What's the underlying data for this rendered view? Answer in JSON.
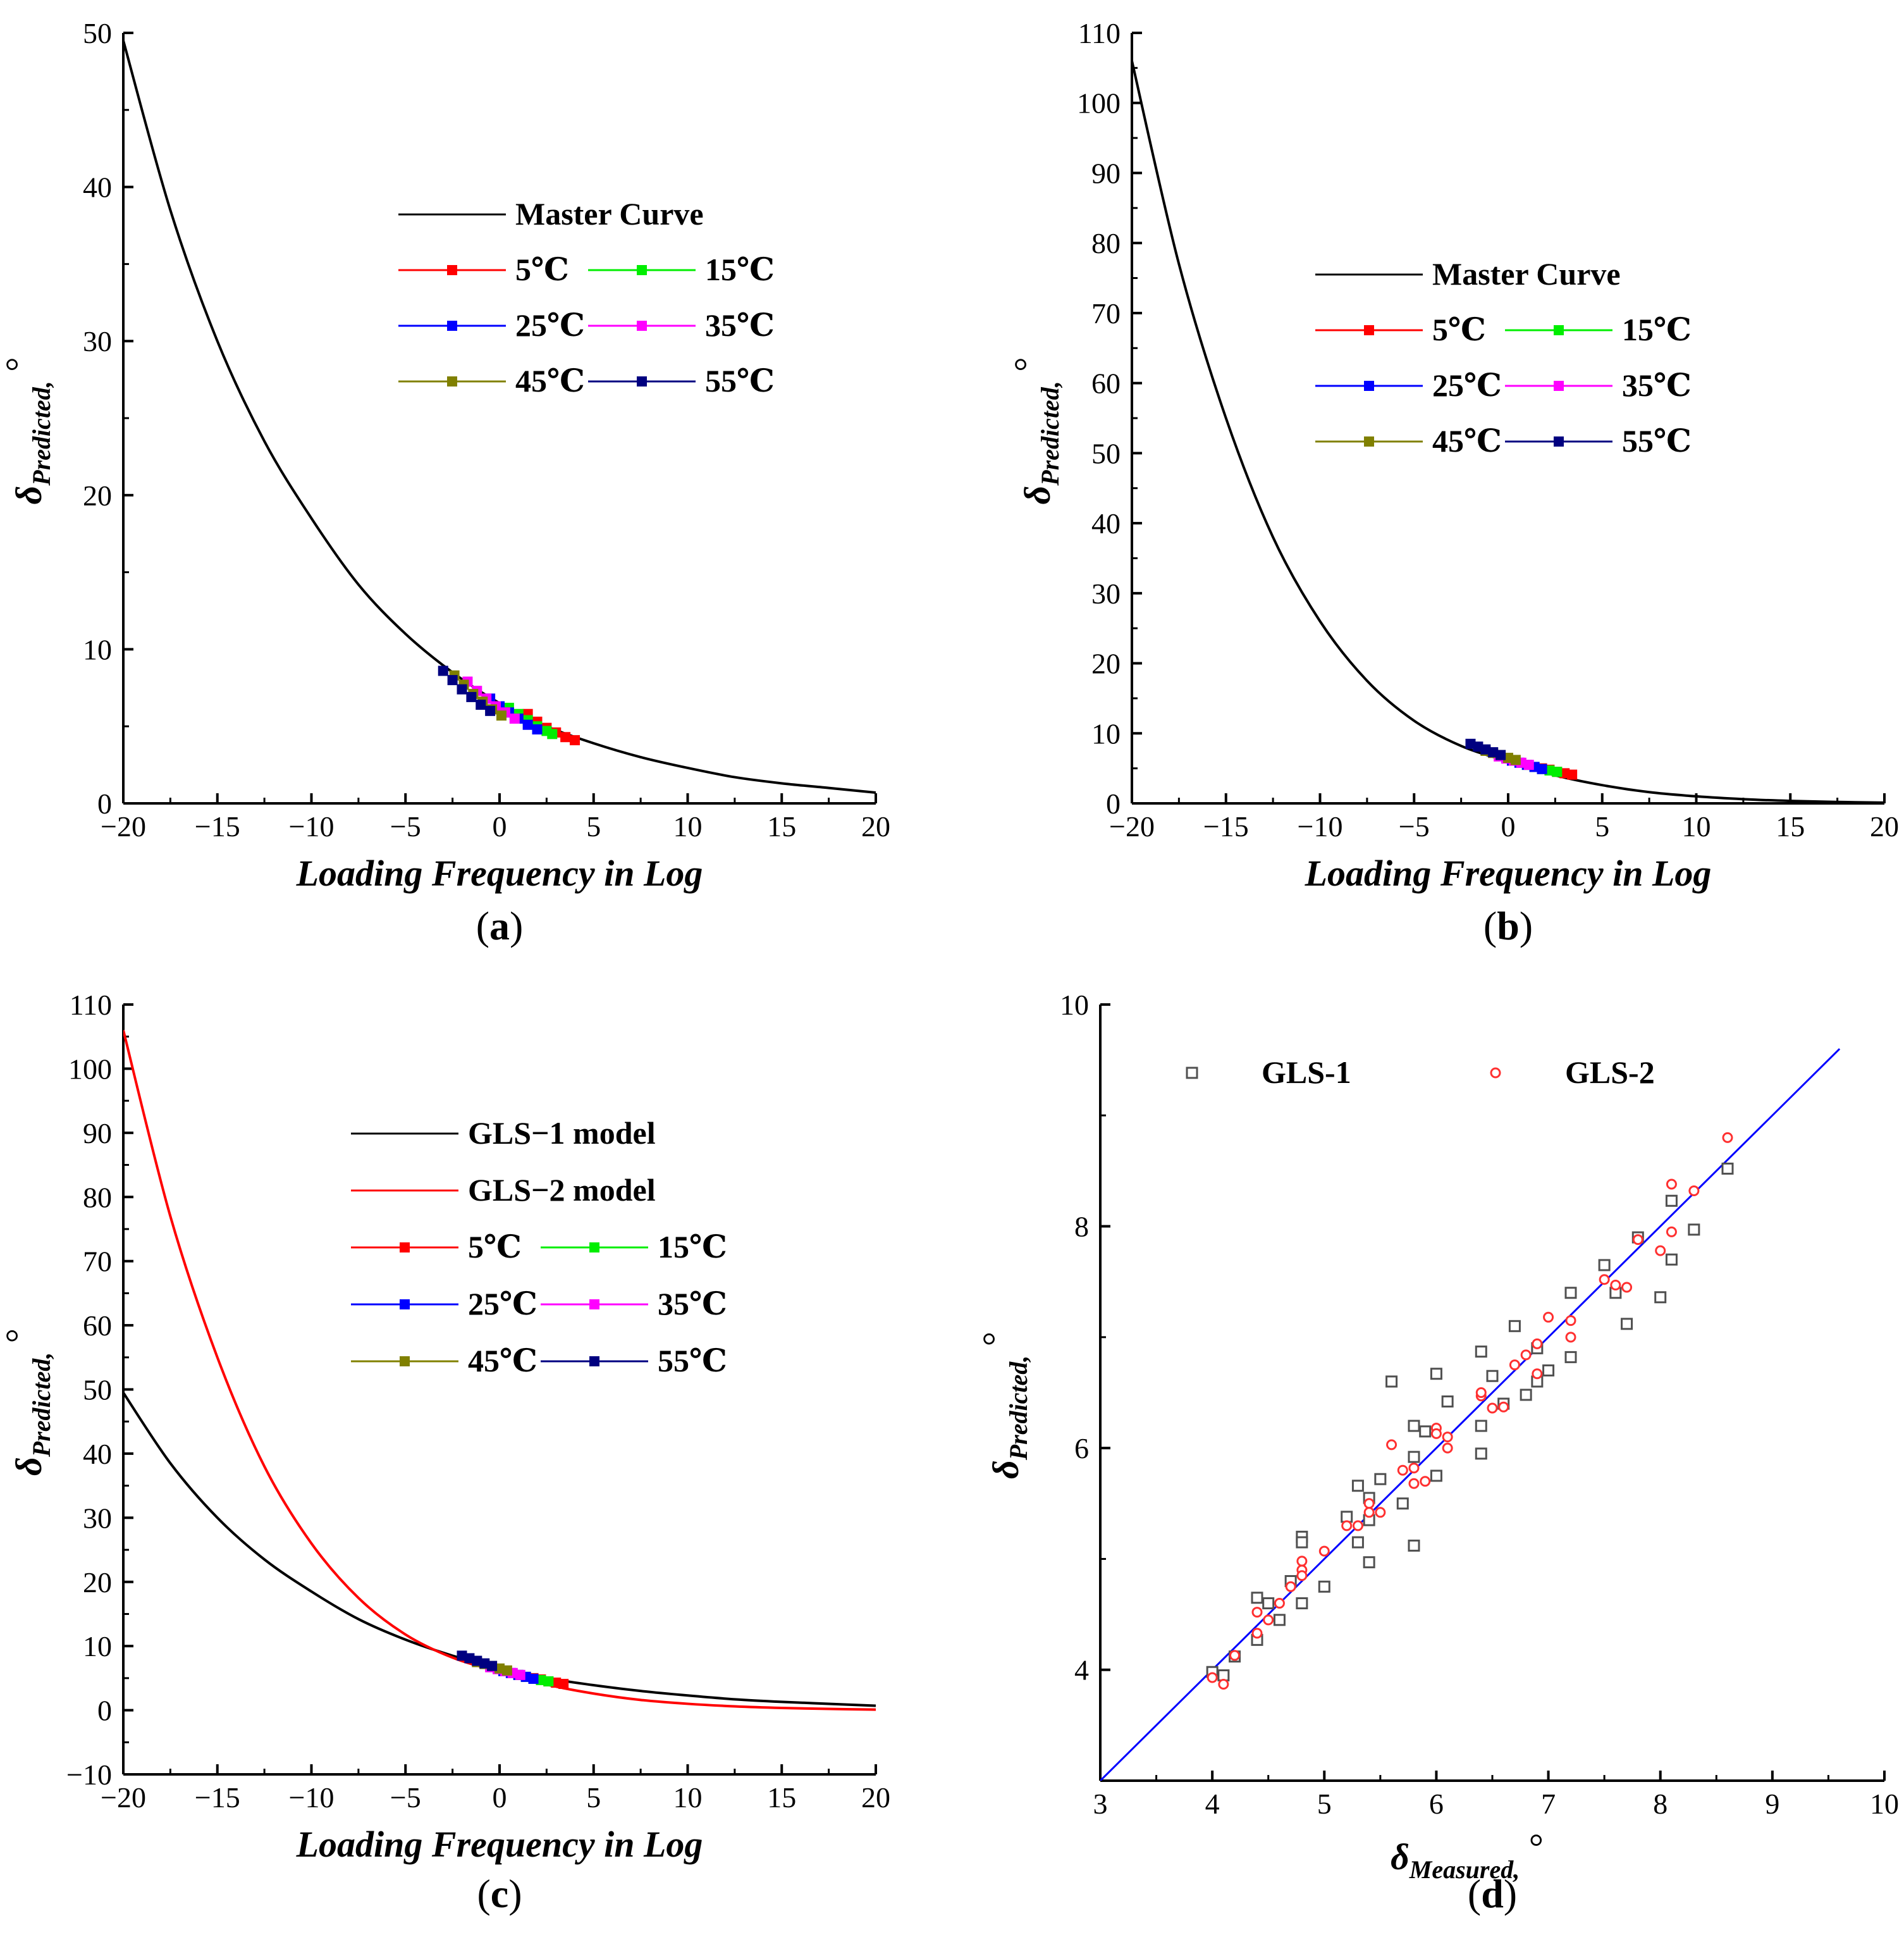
{
  "chart_data": [
    {
      "panel": "(a)",
      "panel_letter": "a",
      "type": "line",
      "xlabel": "Loading Frequency in Log",
      "ylabel_symbol": "δ",
      "ylabel_sub": "Predicted",
      "ylabel_unit": "°",
      "xlim": [
        -20,
        20
      ],
      "ylim": [
        0,
        50
      ],
      "xticks": [
        -20,
        -15,
        -10,
        -5,
        0,
        5,
        10,
        15,
        20
      ],
      "yticks": [
        0,
        10,
        20,
        30,
        40,
        50
      ],
      "curves": [
        {
          "name": "Master Curve",
          "color": "#000000",
          "x": [
            -20,
            -17.5,
            -15,
            -12.5,
            -10,
            -7.5,
            -5,
            -2.5,
            0,
            2.5,
            5,
            7.5,
            10,
            12.5,
            15,
            17.5,
            20
          ],
          "y": [
            49.5,
            38.5,
            30,
            23.5,
            18.5,
            14.2,
            11,
            8.5,
            6.5,
            5,
            3.9,
            3,
            2.3,
            1.7,
            1.3,
            1.0,
            0.7
          ]
        }
      ],
      "legend": [
        "Master Curve",
        "5℃",
        "15℃",
        "25℃",
        "35℃",
        "45℃",
        "55℃"
      ],
      "series": [
        {
          "name": "5℃",
          "color": "#ff0000",
          "x": [
            1.5,
            2.0,
            2.5,
            3.0,
            3.5,
            4.0
          ],
          "y": [
            5.8,
            5.3,
            4.9,
            4.6,
            4.3,
            4.1
          ]
        },
        {
          "name": "15℃",
          "color": "#00ee00",
          "x": [
            0.5,
            1.0,
            1.5,
            2.0,
            2.5,
            2.8
          ],
          "y": [
            6.2,
            5.8,
            5.4,
            5.0,
            4.7,
            4.5
          ]
        },
        {
          "name": "25℃",
          "color": "#0000ff",
          "x": [
            -0.5,
            0.0,
            0.5,
            1.0,
            1.5,
            2.0
          ],
          "y": [
            6.8,
            6.3,
            5.9,
            5.5,
            5.1,
            4.8
          ]
        },
        {
          "name": "35℃",
          "color": "#ff00ff",
          "x": [
            -1.7,
            -1.2,
            -0.7,
            -0.2,
            0.3,
            0.8
          ],
          "y": [
            7.9,
            7.3,
            6.8,
            6.3,
            5.9,
            5.5
          ]
        },
        {
          "name": "45℃",
          "color": "#808000",
          "x": [
            -2.4,
            -1.9,
            -1.4,
            -0.9,
            -0.4,
            0.1
          ],
          "y": [
            8.3,
            7.7,
            7.1,
            6.6,
            6.1,
            5.7
          ]
        },
        {
          "name": "55℃",
          "color": "#000080",
          "x": [
            -3.0,
            -2.5,
            -2.0,
            -1.5,
            -1.0,
            -0.5
          ],
          "y": [
            8.6,
            8.0,
            7.4,
            6.9,
            6.4,
            6.0
          ]
        }
      ]
    },
    {
      "panel": "(b)",
      "panel_letter": "b",
      "type": "line",
      "xlabel": "Loading Frequency in Log",
      "ylabel_symbol": "δ",
      "ylabel_sub": "Predicted",
      "ylabel_unit": "°",
      "xlim": [
        -20,
        20
      ],
      "ylim": [
        0,
        110
      ],
      "xticks": [
        -20,
        -15,
        -10,
        -5,
        0,
        5,
        10,
        15,
        20
      ],
      "yticks": [
        0,
        10,
        20,
        30,
        40,
        50,
        60,
        70,
        80,
        90,
        100,
        110
      ],
      "curves": [
        {
          "name": "Master Curve",
          "color": "#000000",
          "x": [
            -20,
            -17.5,
            -15,
            -12.5,
            -10,
            -7.5,
            -5,
            -2.5,
            0,
            2.5,
            5,
            7.5,
            10,
            12.5,
            15,
            17.5,
            20
          ],
          "y": [
            106,
            77,
            55,
            38,
            26,
            17.5,
            11.8,
            8.2,
            6.0,
            4.0,
            2.6,
            1.6,
            1.0,
            0.6,
            0.35,
            0.2,
            0.1
          ]
        }
      ],
      "legend": [
        "Master Curve",
        "5℃",
        "15℃",
        "25℃",
        "35℃",
        "45℃",
        "55℃"
      ],
      "series": [
        {
          "name": "5℃",
          "color": "#ff0000",
          "x": [
            1.8,
            2.2,
            2.6,
            3.0,
            3.4
          ],
          "y": [
            5.0,
            4.8,
            4.5,
            4.3,
            4.1
          ]
        },
        {
          "name": "15℃",
          "color": "#00ee00",
          "x": [
            1.0,
            1.4,
            1.8,
            2.2,
            2.6
          ],
          "y": [
            5.5,
            5.2,
            4.9,
            4.7,
            4.5
          ]
        },
        {
          "name": "25℃",
          "color": "#0000ff",
          "x": [
            0.2,
            0.6,
            1.0,
            1.4,
            1.8
          ],
          "y": [
            6.1,
            5.8,
            5.5,
            5.2,
            4.9
          ]
        },
        {
          "name": "35℃",
          "color": "#ff00ff",
          "x": [
            -0.5,
            -0.1,
            0.3,
            0.7,
            1.1
          ],
          "y": [
            6.7,
            6.4,
            6.1,
            5.8,
            5.5
          ]
        },
        {
          "name": "45℃",
          "color": "#808000",
          "x": [
            -1.2,
            -0.8,
            -0.4,
            0.0,
            0.4
          ],
          "y": [
            7.5,
            7.2,
            6.9,
            6.5,
            6.2
          ]
        },
        {
          "name": "55℃",
          "color": "#000080",
          "x": [
            -2.0,
            -1.6,
            -1.2,
            -0.8,
            -0.4
          ],
          "y": [
            8.5,
            8.1,
            7.7,
            7.3,
            6.9
          ]
        }
      ]
    },
    {
      "panel": "(c)",
      "panel_letter": "c",
      "type": "line",
      "xlabel": "Loading Frequency in Log",
      "ylabel_symbol": "δ",
      "ylabel_sub": "Predicted",
      "ylabel_unit": "°",
      "xlim": [
        -20,
        20
      ],
      "ylim": [
        -10,
        110
      ],
      "xticks": [
        -20,
        -15,
        -10,
        -5,
        0,
        5,
        10,
        15,
        20
      ],
      "yticks": [
        -10,
        0,
        10,
        20,
        30,
        40,
        50,
        60,
        70,
        80,
        90,
        100,
        110
      ],
      "curves": [
        {
          "name": "GLS−1 model",
          "color": "#000000",
          "x": [
            -20,
            -17.5,
            -15,
            -12.5,
            -10,
            -7.5,
            -5,
            -2.5,
            0,
            2.5,
            5,
            7.5,
            10,
            12.5,
            15,
            17.5,
            20
          ],
          "y": [
            49.5,
            38.5,
            30,
            23.5,
            18.5,
            14.2,
            11,
            8.5,
            6.5,
            5,
            3.9,
            3,
            2.3,
            1.7,
            1.3,
            1.0,
            0.7
          ]
        },
        {
          "name": "GLS−2 model",
          "color": "#ff0000",
          "x": [
            -20,
            -17.5,
            -15,
            -12.5,
            -10,
            -7.5,
            -5,
            -2.5,
            0,
            2.5,
            5,
            7.5,
            10,
            12.5,
            15,
            17.5,
            20
          ],
          "y": [
            106,
            77,
            55,
            38,
            26,
            17.5,
            11.8,
            8.2,
            6.0,
            4.0,
            2.6,
            1.6,
            1.0,
            0.6,
            0.35,
            0.2,
            0.1
          ]
        }
      ],
      "legend": [
        "GLS−1 model",
        "GLS−2 model",
        "5℃",
        "15℃",
        "25℃",
        "35℃",
        "45℃",
        "55℃"
      ],
      "series": [
        {
          "name": "5℃",
          "color": "#ff0000",
          "x": [
            1.8,
            2.2,
            2.6,
            3.0,
            3.4
          ],
          "y": [
            5.0,
            4.8,
            4.5,
            4.3,
            4.1
          ]
        },
        {
          "name": "15℃",
          "color": "#00ee00",
          "x": [
            1.0,
            1.4,
            1.8,
            2.2,
            2.6
          ],
          "y": [
            5.5,
            5.2,
            4.9,
            4.7,
            4.5
          ]
        },
        {
          "name": "25℃",
          "color": "#0000ff",
          "x": [
            0.2,
            0.6,
            1.0,
            1.4,
            1.8
          ],
          "y": [
            6.1,
            5.8,
            5.5,
            5.2,
            4.9
          ]
        },
        {
          "name": "35℃",
          "color": "#ff00ff",
          "x": [
            -0.5,
            -0.1,
            0.3,
            0.7,
            1.1
          ],
          "y": [
            6.7,
            6.4,
            6.1,
            5.8,
            5.5
          ]
        },
        {
          "name": "45℃",
          "color": "#808000",
          "x": [
            -1.2,
            -0.8,
            -0.4,
            0.0,
            0.4
          ],
          "y": [
            7.5,
            7.2,
            6.9,
            6.5,
            6.2
          ]
        },
        {
          "name": "55℃",
          "color": "#000080",
          "x": [
            -2.0,
            -1.6,
            -1.2,
            -0.8,
            -0.4
          ],
          "y": [
            8.5,
            8.1,
            7.7,
            7.3,
            6.9
          ]
        }
      ]
    },
    {
      "panel": "(d)",
      "panel_letter": "d",
      "type": "scatter",
      "xlabel_symbol": "δ",
      "xlabel_sub": "Measured",
      "xlabel_unit": "°",
      "ylabel_symbol": "δ",
      "ylabel_sub": "Predicted",
      "ylabel_unit": "°",
      "xlim": [
        3,
        10
      ],
      "ylim": [
        3,
        10
      ],
      "xticks": [
        3,
        4,
        5,
        6,
        7,
        8,
        9,
        10
      ],
      "yticks": [
        4,
        6,
        8,
        10
      ],
      "reference_line": {
        "color": "#0000ff",
        "x": [
          3,
          9.6
        ],
        "y": [
          3,
          9.6
        ]
      },
      "legend": [
        "GLS-1",
        "GLS-2"
      ],
      "series": [
        {
          "name": "GLS-1",
          "color": "#505050",
          "marker": "square",
          "x": [
            4.0,
            4.1,
            4.2,
            4.4,
            4.4,
            4.5,
            4.6,
            4.7,
            4.8,
            4.8,
            4.8,
            5.0,
            5.2,
            5.3,
            5.3,
            5.4,
            5.4,
            5.4,
            5.5,
            5.6,
            5.7,
            5.8,
            5.8,
            5.8,
            5.9,
            6.0,
            6.0,
            6.1,
            6.4,
            6.4,
            6.4,
            6.5,
            6.6,
            6.7,
            6.8,
            6.9,
            6.9,
            7.0,
            7.2,
            7.2,
            7.5,
            7.6,
            7.7,
            7.8,
            8.0,
            8.1,
            8.1,
            8.3,
            8.6
          ],
          "y": [
            3.98,
            3.95,
            4.12,
            4.27,
            4.65,
            4.6,
            4.45,
            4.8,
            5.2,
            5.15,
            4.6,
            4.75,
            5.38,
            5.66,
            5.15,
            5.55,
            5.35,
            4.97,
            5.72,
            6.6,
            5.5,
            6.2,
            5.92,
            5.12,
            6.15,
            6.67,
            5.75,
            6.42,
            6.87,
            6.2,
            5.95,
            6.65,
            6.4,
            7.1,
            6.48,
            6.9,
            6.6,
            6.7,
            7.4,
            6.82,
            7.65,
            7.4,
            7.12,
            7.9,
            7.36,
            8.23,
            7.7,
            7.97,
            8.52
          ]
        },
        {
          "name": "GLS-2",
          "color": "#ff3030",
          "marker": "circle",
          "x": [
            4.0,
            4.1,
            4.2,
            4.4,
            4.4,
            4.5,
            4.6,
            4.7,
            4.8,
            4.8,
            4.8,
            5.0,
            5.2,
            5.3,
            5.4,
            5.4,
            5.5,
            5.6,
            5.7,
            5.8,
            5.8,
            5.9,
            6.0,
            6.0,
            6.1,
            6.1,
            6.4,
            6.4,
            6.5,
            6.6,
            6.7,
            6.8,
            6.9,
            6.9,
            7.0,
            7.2,
            7.2,
            7.5,
            7.6,
            7.7,
            7.8,
            8.0,
            8.1,
            8.1,
            8.3,
            8.6
          ],
          "y": [
            3.93,
            3.87,
            4.13,
            4.33,
            4.52,
            4.45,
            4.6,
            4.75,
            4.9,
            4.98,
            4.85,
            5.07,
            5.3,
            5.3,
            5.5,
            5.42,
            5.42,
            6.03,
            5.8,
            5.82,
            5.68,
            5.7,
            6.18,
            6.13,
            6.1,
            6.0,
            6.47,
            6.5,
            6.36,
            6.37,
            6.75,
            6.84,
            6.94,
            6.67,
            7.18,
            7.15,
            7.0,
            7.52,
            7.47,
            7.45,
            7.88,
            7.78,
            8.38,
            7.95,
            8.32,
            8.8
          ]
        }
      ]
    }
  ]
}
